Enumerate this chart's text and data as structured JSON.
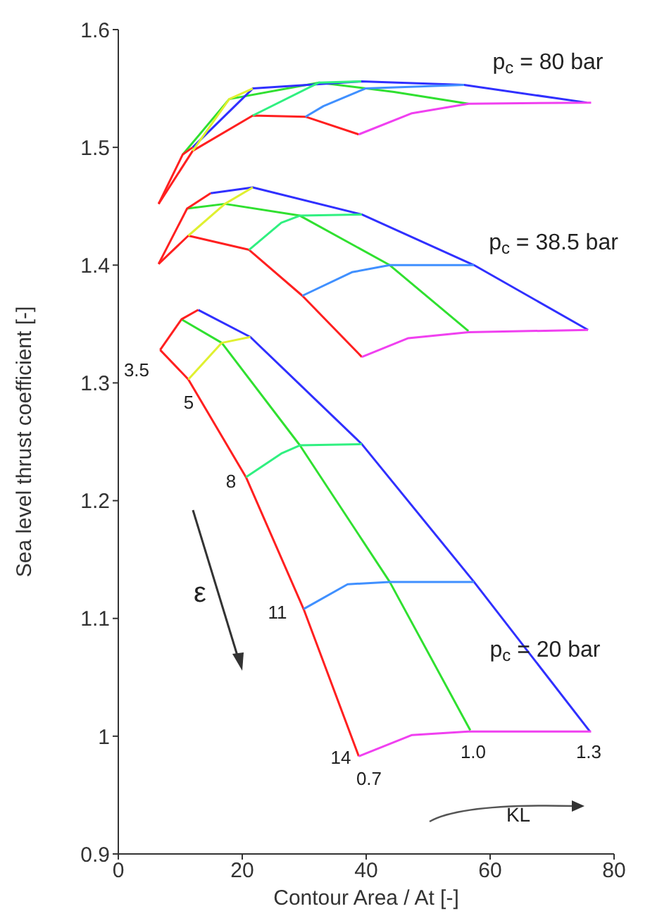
{
  "chart_data": {
    "type": "line",
    "xlabel": "Contour Area / At [-]",
    "ylabel": "Sea level thrust coefficient [-]",
    "xlim": [
      0,
      80
    ],
    "ylim": [
      0.9,
      1.6
    ],
    "xticks": [
      0,
      20,
      40,
      60,
      80
    ],
    "yticks": [
      0.9,
      1,
      1.1,
      1.2,
      1.3,
      1.4,
      1.5,
      1.6
    ],
    "series": [
      {
        "color": "#ff2020",
        "x": [
          6.5,
          12.0,
          21.7,
          30.2,
          38.8
        ],
        "values": [
          1.452,
          1.497,
          1.527,
          1.526,
          1.511
        ]
      },
      {
        "color": "#30e030",
        "x": [
          10.4,
          17.9,
          32.4,
          44.5,
          56.5
        ],
        "values": [
          1.494,
          1.541,
          1.555,
          1.547,
          1.537
        ]
      },
      {
        "color": "#3030ff",
        "x": [
          12.0,
          21.7,
          39.2,
          55.8,
          75.6
        ],
        "values": [
          1.5,
          1.55,
          1.556,
          1.553,
          1.538
        ]
      },
      {
        "color": "#ff2020",
        "x": [
          6.5,
          10.4,
          12.0
        ],
        "values": [
          1.452,
          1.494,
          1.5
        ]
      },
      {
        "color": "#e0f030",
        "x": [
          12.0,
          17.9,
          21.7
        ],
        "values": [
          1.497,
          1.541,
          1.55
        ]
      },
      {
        "color": "#30f080",
        "x": [
          21.7,
          32.4,
          39.2
        ],
        "values": [
          1.527,
          1.555,
          1.556
        ]
      },
      {
        "color": "#4090ff",
        "x": [
          30.2,
          33.1,
          39.9,
          55.8
        ],
        "values": [
          1.526,
          1.535,
          1.55,
          1.553
        ]
      },
      {
        "color": "#f040f0",
        "x": [
          38.8,
          47.4,
          56.5,
          76.3
        ],
        "values": [
          1.511,
          1.529,
          1.537,
          1.538
        ]
      },
      {
        "color": "#ff2020",
        "x": [
          6.5,
          11.3,
          21.1,
          29.7,
          39.3
        ],
        "values": [
          1.401,
          1.425,
          1.413,
          1.374,
          1.322
        ]
      },
      {
        "color": "#30e030",
        "x": [
          11.1,
          17.2,
          29.3,
          43.8,
          56.5
        ],
        "values": [
          1.448,
          1.452,
          1.442,
          1.4,
          1.344
        ]
      },
      {
        "color": "#3030ff",
        "x": [
          14.9,
          21.7,
          39.3,
          57.4,
          75.8
        ],
        "values": [
          1.461,
          1.466,
          1.443,
          1.4,
          1.345
        ]
      },
      {
        "color": "#ff2020",
        "x": [
          6.5,
          11.1,
          14.9
        ],
        "values": [
          1.401,
          1.448,
          1.461
        ]
      },
      {
        "color": "#e0f030",
        "x": [
          11.3,
          17.2,
          21.7
        ],
        "values": [
          1.425,
          1.452,
          1.466
        ]
      },
      {
        "color": "#30f080",
        "x": [
          21.1,
          26.3,
          29.3,
          39.3
        ],
        "values": [
          1.413,
          1.436,
          1.442,
          1.443
        ]
      },
      {
        "color": "#4090ff",
        "x": [
          29.7,
          37.7,
          43.8,
          57.4
        ],
        "values": [
          1.374,
          1.394,
          1.4,
          1.4
        ]
      },
      {
        "color": "#f040f0",
        "x": [
          39.3,
          46.8,
          56.5,
          75.8
        ],
        "values": [
          1.322,
          1.338,
          1.343,
          1.345
        ]
      },
      {
        "color": "#ff2020",
        "x": [
          6.75,
          11.3,
          20.6,
          29.9,
          38.8
        ],
        "values": [
          1.328,
          1.303,
          1.22,
          1.108,
          0.983
        ]
      },
      {
        "color": "#30e030",
        "x": [
          10.2,
          16.7,
          29.3,
          43.8,
          56.8
        ],
        "values": [
          1.354,
          1.334,
          1.247,
          1.131,
          1.005
        ]
      },
      {
        "color": "#3030ff",
        "x": [
          12.9,
          21.3,
          39.3,
          57.4,
          76.1
        ],
        "values": [
          1.362,
          1.339,
          1.248,
          1.131,
          1.004
        ]
      },
      {
        "color": "#ff2020",
        "x": [
          6.75,
          10.2,
          12.9
        ],
        "values": [
          1.328,
          1.354,
          1.362
        ]
      },
      {
        "color": "#e0f030",
        "x": [
          11.3,
          16.7,
          21.3
        ],
        "values": [
          1.303,
          1.334,
          1.339
        ]
      },
      {
        "color": "#30f080",
        "x": [
          20.6,
          26.3,
          29.3,
          39.3
        ],
        "values": [
          1.22,
          1.24,
          1.247,
          1.248
        ]
      },
      {
        "color": "#4090ff",
        "x": [
          29.9,
          37.0,
          43.8,
          57.4
        ],
        "values": [
          1.108,
          1.129,
          1.131,
          1.131
        ]
      },
      {
        "color": "#f040f0",
        "x": [
          38.8,
          47.4,
          56.5,
          76.3
        ],
        "values": [
          0.983,
          1.001,
          1.004,
          1.004
        ]
      }
    ],
    "annotations": [
      "p$_{c}$ = 80 bar",
      "p$_{c}$ = 38.5 bar",
      "p$_{c}$ = 20 bar",
      "3.5",
      "5",
      "8",
      "11",
      "14",
      "0.7",
      "1.0",
      "1.3",
      "ε",
      "KL"
    ]
  }
}
